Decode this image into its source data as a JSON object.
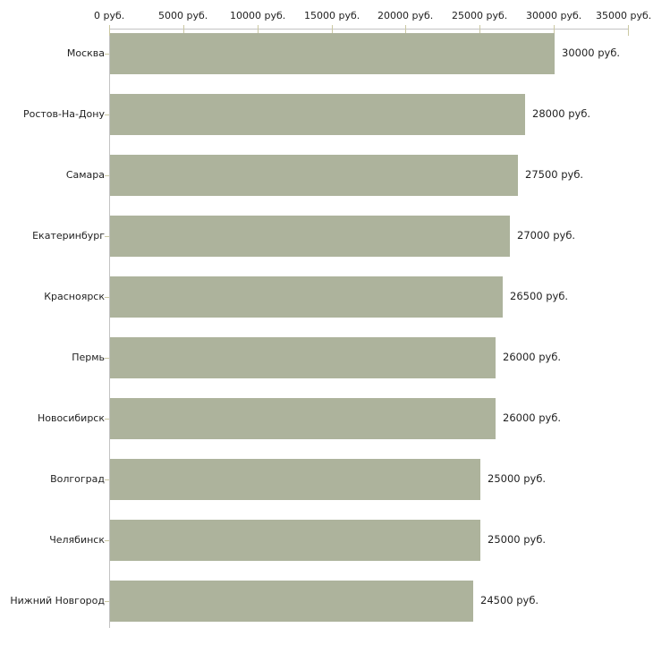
{
  "chart_data": {
    "type": "bar",
    "orientation": "horizontal",
    "title": "",
    "xlabel": "",
    "ylabel": "",
    "unit": "руб.",
    "categories": [
      "Москва",
      "Ростов-На-Дону",
      "Самара",
      "Екатеринбург",
      "Красноярск",
      "Пермь",
      "Новосибирск",
      "Волгоград",
      "Челябинск",
      "Нижний Новгород"
    ],
    "values": [
      30000,
      28000,
      27500,
      27000,
      26500,
      26000,
      26000,
      25000,
      25000,
      24500
    ],
    "value_labels": [
      "30000 руб.",
      "28000 руб.",
      "27500 руб.",
      "27000 руб.",
      "26500 руб.",
      "26000 руб.",
      "26000 руб.",
      "25000 руб.",
      "25000 руб.",
      "24500 руб."
    ],
    "x_ticks": [
      0,
      5000,
      10000,
      15000,
      20000,
      25000,
      30000,
      35000
    ],
    "x_tick_labels": [
      "0 руб.",
      "5000 руб.",
      "10000 руб.",
      "15000 руб.",
      "20000 руб.",
      "25000 руб.",
      "30000 руб.",
      "35000 руб."
    ],
    "xlim": [
      0,
      35000
    ],
    "grid": false,
    "legend": null,
    "axis_position": "top",
    "colors": {
      "bar": "#adb39c",
      "axis": "#c3c3c3",
      "tick": "#cbc8a2",
      "text": "#222222",
      "background": "#ffffff"
    }
  }
}
